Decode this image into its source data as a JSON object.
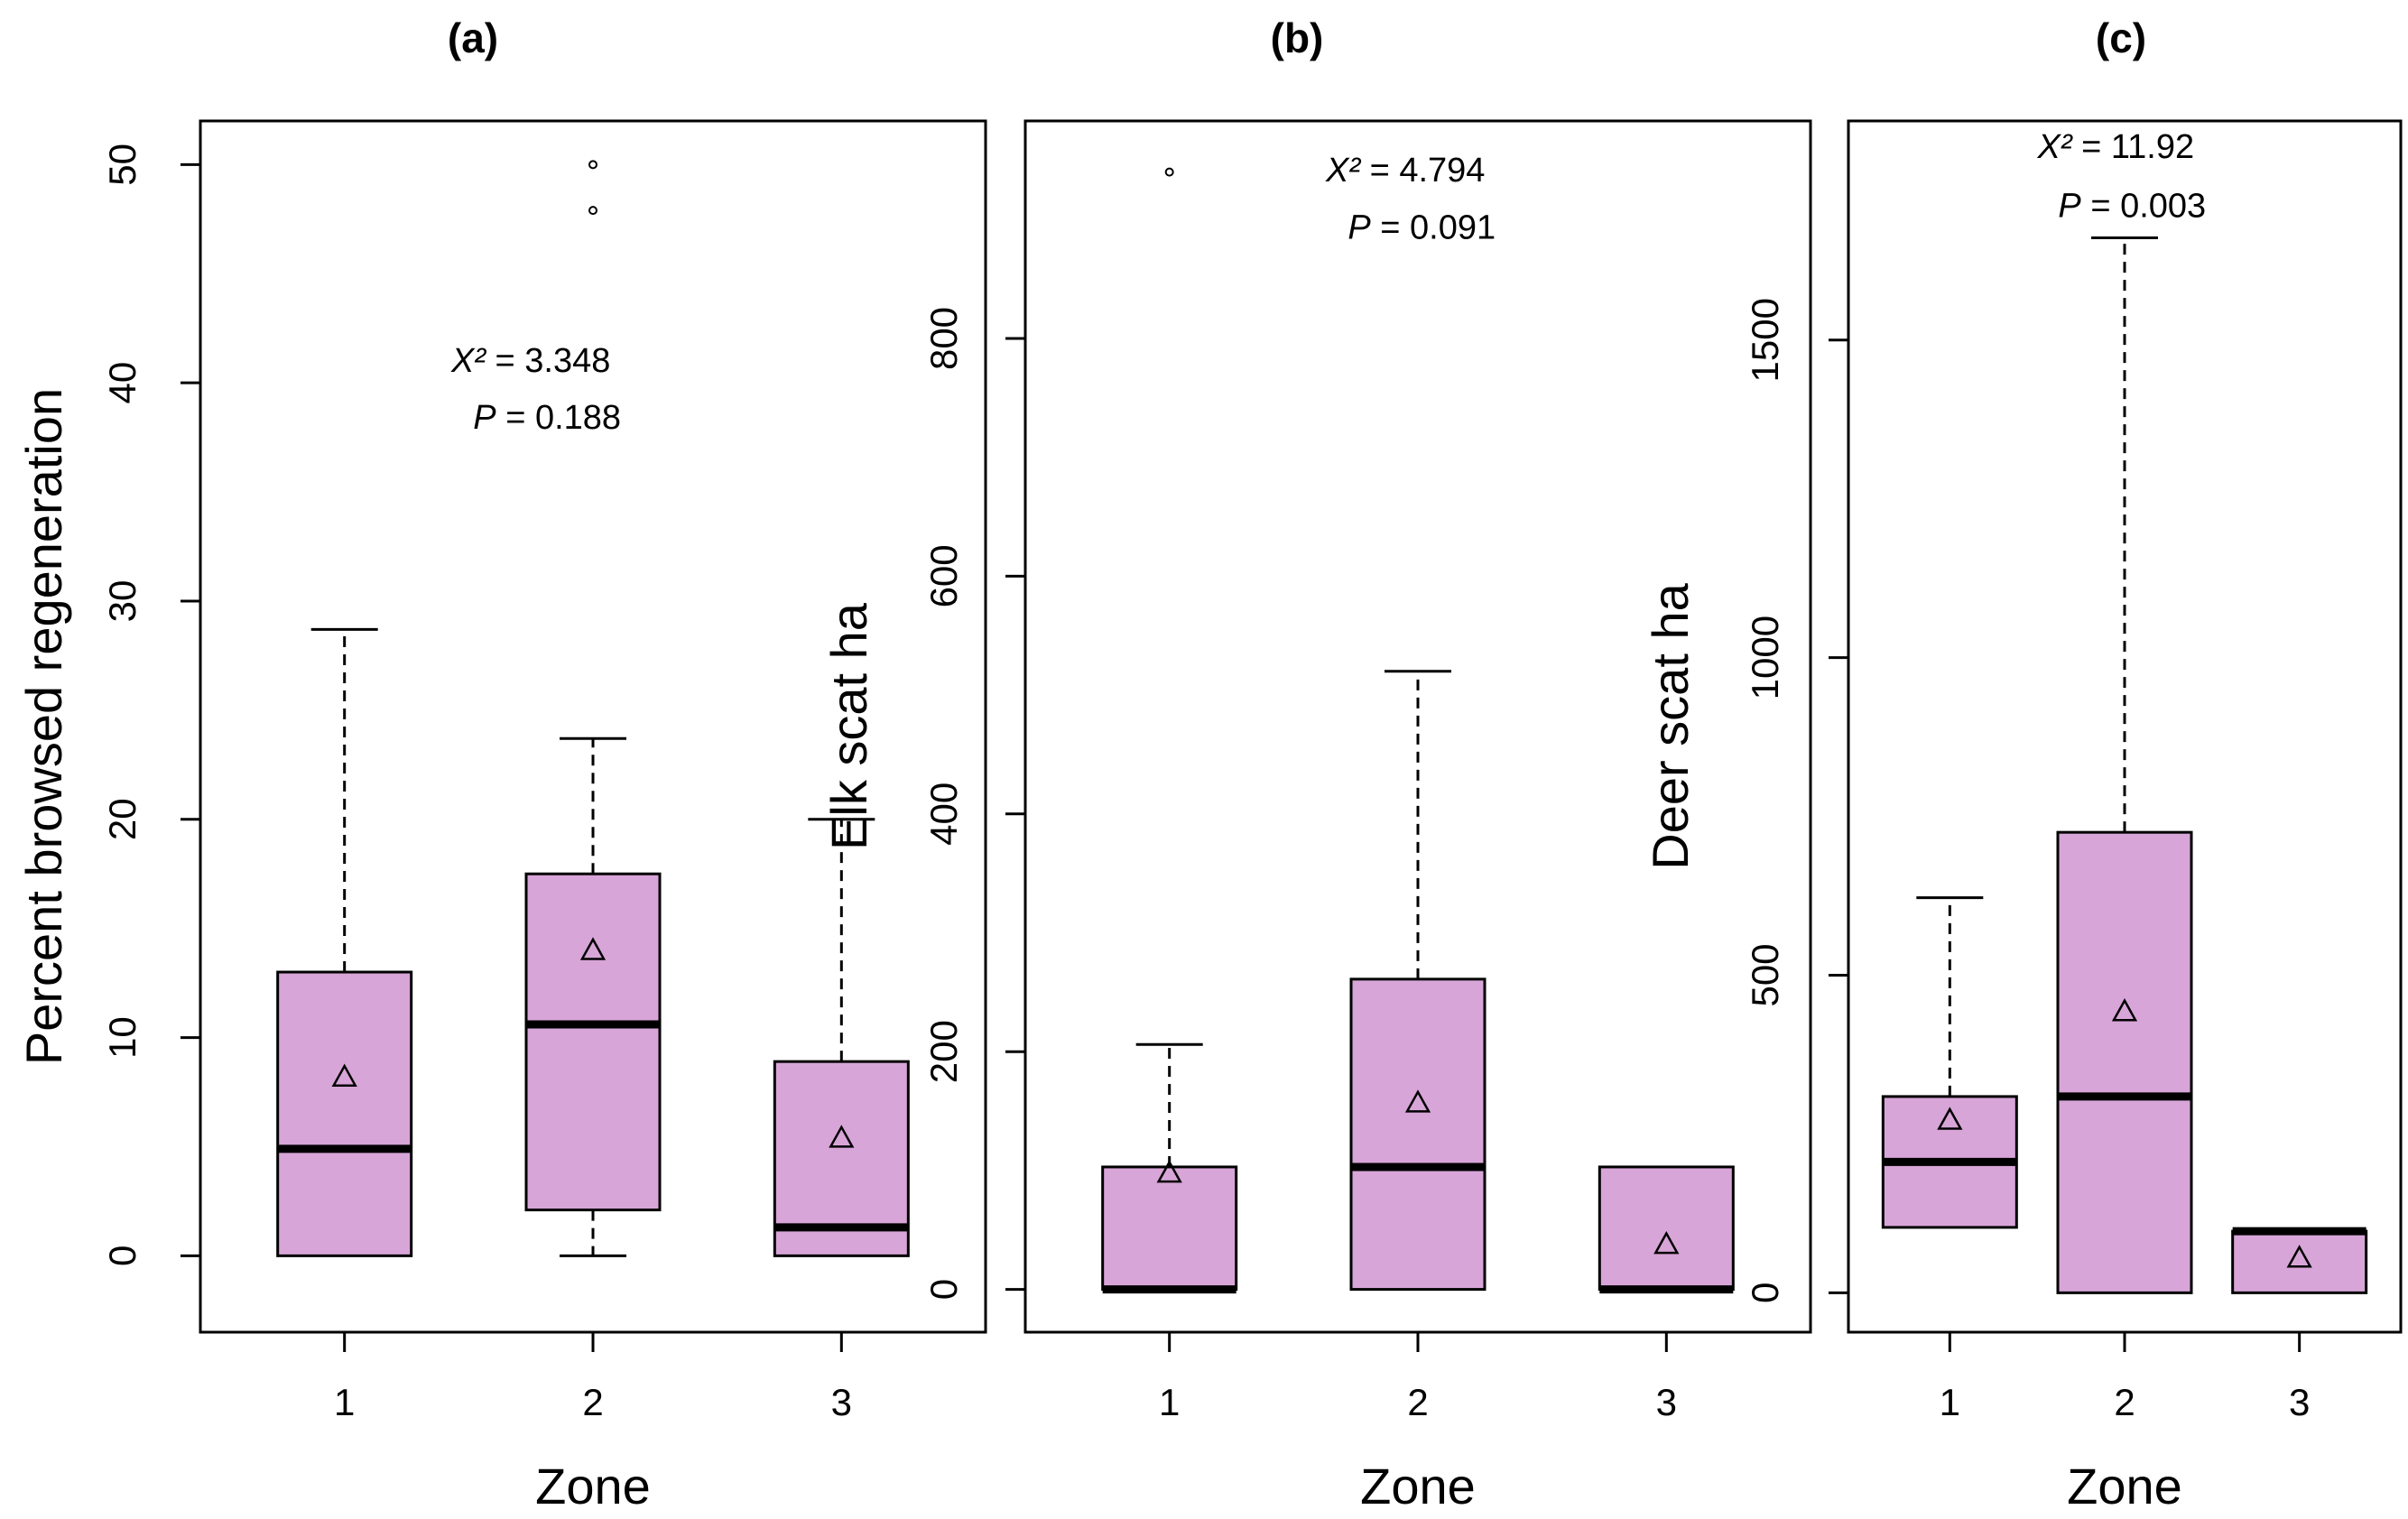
{
  "colors": {
    "box_fill": "#d8a5d8",
    "line": "#000000",
    "background": "#ffffff"
  },
  "chart_data": [
    {
      "type": "boxplot",
      "title": "(a)",
      "xlabel": "Zone",
      "ylabel": "Percent browsed regeneration",
      "categories": [
        "1",
        "2",
        "3"
      ],
      "ylim": [
        -3.5,
        52
      ],
      "yticks": [
        0,
        10,
        20,
        30,
        40,
        50
      ],
      "ytick_labels": [
        "0",
        "10",
        "20",
        "30",
        "40",
        "50"
      ],
      "boxes": [
        {
          "zone": "1",
          "whisker_low": 0,
          "q1": 0,
          "median": 4.9,
          "q3": 13.0,
          "whisker_high": 28.7,
          "mean": 8.2,
          "outliers": []
        },
        {
          "zone": "2",
          "whisker_low": 0,
          "q1": 2.1,
          "median": 10.6,
          "q3": 17.5,
          "whisker_high": 23.7,
          "mean": 14.0,
          "outliers": [
            47.9,
            50.0
          ]
        },
        {
          "zone": "3",
          "whisker_low": 0,
          "q1": 0,
          "median": 1.3,
          "q3": 8.9,
          "whisker_high": 20.0,
          "mean": 5.4,
          "outliers": []
        }
      ],
      "annotation": {
        "x": 1.75,
        "chi_label": "X²",
        "chi_value": "= 3.348",
        "p_label": "P",
        "p_value": "= 0.188",
        "y1": 40.5,
        "y2": 37.9
      }
    },
    {
      "type": "boxplot",
      "title": "(b)",
      "xlabel": "Zone",
      "ylabel": "Elk scat ha",
      "categories": [
        "1",
        "2",
        "3"
      ],
      "ylim": [
        -36,
        983
      ],
      "yticks": [
        0,
        200,
        400,
        600,
        800
      ],
      "ytick_labels": [
        "0",
        "200",
        "400",
        "600",
        "800"
      ],
      "boxes": [
        {
          "zone": "1",
          "whisker_low": 0,
          "q1": 0,
          "median": 0,
          "q3": 103,
          "whisker_high": 206,
          "mean": 98,
          "outliers": [
            940
          ]
        },
        {
          "zone": "2",
          "whisker_low": 0,
          "q1": 0,
          "median": 103,
          "q3": 261,
          "whisker_high": 520,
          "mean": 157,
          "outliers": []
        },
        {
          "zone": "3",
          "whisker_low": 0,
          "q1": 0,
          "median": 0,
          "q3": 103,
          "whisker_high": 103,
          "mean": 38,
          "outliers": []
        }
      ],
      "annotation": {
        "x": 1.95,
        "chi_label": "X²",
        "chi_value": "= 4.794",
        "p_label": "P",
        "p_value": "= 0.091",
        "y1": 932,
        "y2": 884
      }
    },
    {
      "type": "boxplot",
      "title": "(c)",
      "xlabel": "Zone",
      "ylabel": "Deer scat ha",
      "categories": [
        "1",
        "2",
        "3"
      ],
      "ylim": [
        -62,
        1845
      ],
      "yticks": [
        0,
        500,
        1000,
        1500
      ],
      "ytick_labels": [
        "0",
        "500",
        "1000",
        "1500"
      ],
      "boxes": [
        {
          "zone": "1",
          "whisker_low": 103,
          "q1": 103,
          "median": 206,
          "q3": 309,
          "whisker_high": 622,
          "mean": 272,
          "outliers": []
        },
        {
          "zone": "2",
          "whisker_low": 0,
          "q1": 0,
          "median": 309,
          "q3": 725,
          "whisker_high": 1661,
          "mean": 443,
          "outliers": []
        },
        {
          "zone": "3",
          "whisker_low": 0,
          "q1": 0,
          "median": 97,
          "q3": 97,
          "whisker_high": 97,
          "mean": 55,
          "outliers": []
        }
      ],
      "annotation": {
        "x": 1.95,
        "chi_label": "X²",
        "chi_value": "= 11.92",
        "p_label": "P",
        "p_value": "= 0.003",
        "y1": 1787,
        "y2": 1694
      }
    }
  ]
}
